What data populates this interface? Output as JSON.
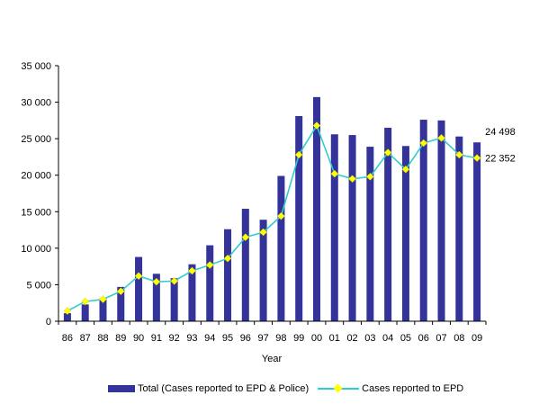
{
  "chart_data": {
    "type": "bar",
    "title": "",
    "xlabel": "Year",
    "ylabel": "",
    "ylim": [
      0,
      35000
    ],
    "yticks": [
      0,
      5000,
      10000,
      15000,
      20000,
      25000,
      30000,
      35000
    ],
    "ytick_labels": [
      "0",
      "5 000",
      "10 000",
      "15 000",
      "20 000",
      "25 000",
      "30 000",
      "35 000"
    ],
    "categories": [
      "86",
      "87",
      "88",
      "89",
      "90",
      "91",
      "92",
      "93",
      "94",
      "95",
      "96",
      "97",
      "98",
      "99",
      "00",
      "01",
      "02",
      "03",
      "04",
      "05",
      "06",
      "07",
      "08",
      "09"
    ],
    "grid": false,
    "legend_position": "bottom",
    "series": [
      {
        "name": "Total (Cases reported to EPD & Police)",
        "type": "bar",
        "color": "#333399",
        "values": [
          1100,
          2300,
          3100,
          4700,
          8800,
          6500,
          5900,
          7800,
          10400,
          12600,
          15400,
          13900,
          19900,
          28100,
          30700,
          25600,
          25500,
          23900,
          26500,
          24000,
          27600,
          27500,
          25300,
          24498
        ]
      },
      {
        "name": "Cases reported to EPD",
        "type": "line",
        "color": "#33CCCC",
        "marker_color": "#FFFF00",
        "values": [
          1400,
          2700,
          3000,
          4100,
          6200,
          5400,
          5500,
          6900,
          7700,
          8600,
          11500,
          12200,
          14400,
          22800,
          26800,
          20200,
          19500,
          19800,
          23100,
          20800,
          24400,
          25100,
          22800,
          22352
        ]
      }
    ],
    "annotations": [
      {
        "series": 0,
        "index": 23,
        "text": "24 498"
      },
      {
        "series": 1,
        "index": 23,
        "text": "22 352"
      }
    ]
  }
}
